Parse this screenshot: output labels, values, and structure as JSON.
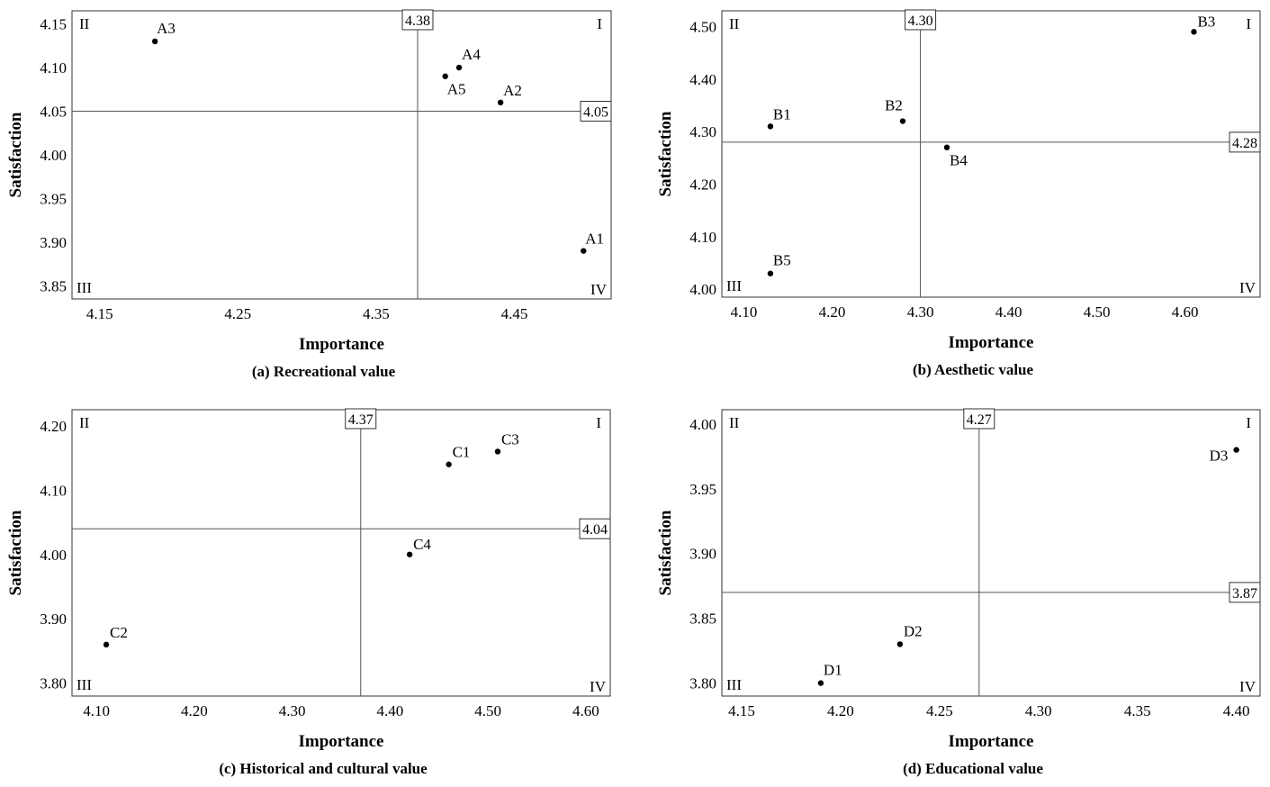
{
  "chart_data": [
    {
      "id": "a",
      "type": "scatter",
      "caption": "(a) Recreational value",
      "xlabel": "Importance",
      "ylabel": "Satisfaction",
      "xlim": [
        4.13,
        4.52
      ],
      "ylim": [
        3.835,
        4.165
      ],
      "xticks": [
        "4.15",
        "4.25",
        "4.35",
        "4.45"
      ],
      "yticks": [
        "3.85",
        "3.90",
        "3.95",
        "4.00",
        "4.05",
        "4.10",
        "4.15"
      ],
      "ref_x": 4.38,
      "ref_x_label": "4.38",
      "ref_y": 4.05,
      "ref_y_label": "4.05",
      "quadrants": {
        "I": "I",
        "II": "II",
        "III": "III",
        "IV": "IV"
      },
      "points": [
        {
          "label": "A1",
          "x": 4.5,
          "y": 3.89
        },
        {
          "label": "A2",
          "x": 4.44,
          "y": 4.06
        },
        {
          "label": "A3",
          "x": 4.19,
          "y": 4.13
        },
        {
          "label": "A4",
          "x": 4.41,
          "y": 4.1
        },
        {
          "label": "A5",
          "x": 4.4,
          "y": 4.09
        }
      ]
    },
    {
      "id": "b",
      "type": "scatter",
      "caption": "(b) Aesthetic value",
      "xlabel": "Importance",
      "ylabel": "Satisfaction",
      "xlim": [
        4.075,
        4.685
      ],
      "ylim": [
        3.985,
        4.53
      ],
      "xticks": [
        "4.10",
        "4.20",
        "4.30",
        "4.40",
        "4.50",
        "4.60"
      ],
      "yticks": [
        "4.00",
        "4.10",
        "4.20",
        "4.30",
        "4.40",
        "4.50"
      ],
      "ref_x": 4.3,
      "ref_x_label": "4.30",
      "ref_y": 4.28,
      "ref_y_label": "4.28",
      "quadrants": {
        "I": "I",
        "II": "II",
        "III": "III",
        "IV": "IV"
      },
      "points": [
        {
          "label": "B1",
          "x": 4.13,
          "y": 4.31
        },
        {
          "label": "B2",
          "x": 4.28,
          "y": 4.32
        },
        {
          "label": "B3",
          "x": 4.61,
          "y": 4.49
        },
        {
          "label": "B4",
          "x": 4.33,
          "y": 4.27
        },
        {
          "label": "B5",
          "x": 4.13,
          "y": 4.03
        }
      ]
    },
    {
      "id": "c",
      "type": "scatter",
      "caption": "(c) Historical and cultural value",
      "xlabel": "Importance",
      "ylabel": "Satisfaction",
      "xlim": [
        4.075,
        4.625
      ],
      "ylim": [
        3.78,
        4.225
      ],
      "xticks": [
        "4.10",
        "4.20",
        "4.30",
        "4.40",
        "4.50",
        "4.60"
      ],
      "yticks": [
        "3.80",
        "3.90",
        "4.00",
        "4.10",
        "4.20"
      ],
      "ref_x": 4.37,
      "ref_x_label": "4.37",
      "ref_y": 4.04,
      "ref_y_label": "4.04",
      "quadrants": {
        "I": "I",
        "II": "II",
        "III": "III",
        "IV": "IV"
      },
      "points": [
        {
          "label": "C1",
          "x": 4.46,
          "y": 4.14
        },
        {
          "label": "C2",
          "x": 4.11,
          "y": 3.86
        },
        {
          "label": "C3",
          "x": 4.51,
          "y": 4.16
        },
        {
          "label": "C4",
          "x": 4.42,
          "y": 4.0
        }
      ]
    },
    {
      "id": "d",
      "type": "scatter",
      "caption": "(d) Educational value",
      "xlabel": "Importance",
      "ylabel": "Satisfaction",
      "xlim": [
        4.14,
        4.412
      ],
      "ylim": [
        3.79,
        4.011
      ],
      "xticks": [
        "4.15",
        "4.20",
        "4.25",
        "4.30",
        "4.35",
        "4.40"
      ],
      "yticks": [
        "3.80",
        "3.85",
        "3.90",
        "3.95",
        "4.00"
      ],
      "ref_x": 4.27,
      "ref_x_label": "4.27",
      "ref_y": 3.87,
      "ref_y_label": "3.87",
      "quadrants": {
        "I": "I",
        "II": "II",
        "III": "III",
        "IV": "IV"
      },
      "points": [
        {
          "label": "D1",
          "x": 4.19,
          "y": 3.8
        },
        {
          "label": "D2",
          "x": 4.23,
          "y": 3.83
        },
        {
          "label": "D3",
          "x": 4.4,
          "y": 3.98
        }
      ]
    }
  ]
}
